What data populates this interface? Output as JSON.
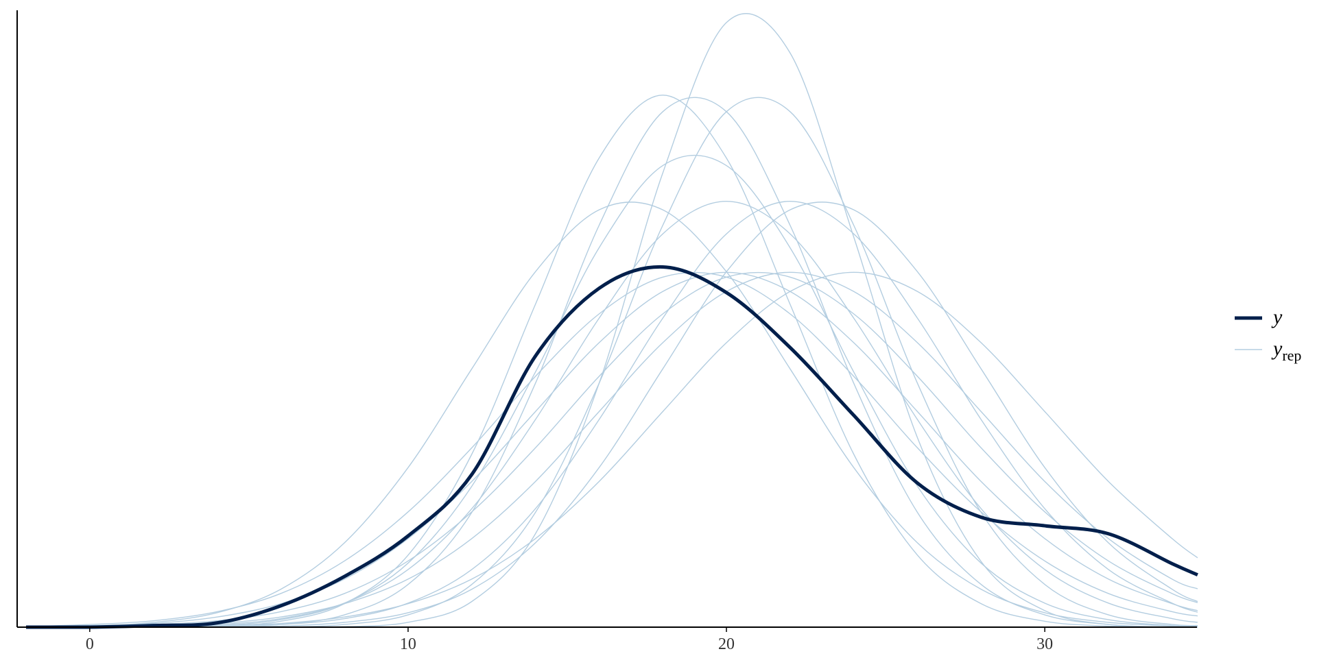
{
  "chart_data": {
    "type": "density_overlay",
    "x": [
      -2,
      0,
      2,
      4,
      6,
      8,
      10,
      12,
      14,
      16,
      18,
      20,
      22,
      24,
      26,
      28,
      30,
      32,
      34,
      34.8
    ],
    "xlim": [
      -2.28,
      34.78
    ],
    "xticks": [
      0,
      10,
      20,
      30
    ],
    "ylim": [
      0,
      0.1156
    ],
    "series": [
      {
        "color": "#b3cde0",
        "values": [
          0,
          0,
          0,
          0,
          0,
          0.0001,
          0.0009,
          0.0048,
          0.0175,
          0.0457,
          0.0851,
          0.1133,
          0.1076,
          0.0731,
          0.0355,
          0.0123,
          0.0031,
          0.0005,
          0,
          0
        ]
      },
      {
        "color": "#b3cde0",
        "values": [
          0,
          0,
          0.0001,
          0.0003,
          0.0014,
          0.0045,
          0.012,
          0.0264,
          0.0478,
          0.0711,
          0.0865,
          0.0865,
          0.0711,
          0.0478,
          0.0264,
          0.012,
          0.0045,
          0.0014,
          0.0003,
          0.0002
        ]
      },
      {
        "color": "#b3cde0",
        "values": [
          0,
          0,
          0.0002,
          0.0005,
          0.0016,
          0.0045,
          0.0108,
          0.0222,
          0.0389,
          0.0579,
          0.0737,
          0.0798,
          0.0737,
          0.0579,
          0.0389,
          0.0222,
          0.0108,
          0.0045,
          0.0016,
          0.0009
        ]
      },
      {
        "color": "#b3cde0",
        "values": [
          0,
          0.0001,
          0.0005,
          0.0012,
          0.0029,
          0.0063,
          0.0124,
          0.0216,
          0.0336,
          0.047,
          0.0587,
          0.0656,
          0.0656,
          0.0587,
          0.047,
          0.0336,
          0.0216,
          0.0124,
          0.0063,
          0.0046
        ]
      },
      {
        "color": "#b3cde0",
        "values": [
          0,
          0,
          0,
          0.0002,
          0.0011,
          0.0044,
          0.0135,
          0.0324,
          0.0605,
          0.0879,
          0.0997,
          0.0879,
          0.0605,
          0.0324,
          0.0135,
          0.0044,
          0.0011,
          0.0002,
          0,
          0
        ]
      },
      {
        "color": "#b3cde0",
        "values": [
          0,
          0,
          0,
          0.0002,
          0.0005,
          0.0016,
          0.0045,
          0.0108,
          0.0222,
          0.0389,
          0.0579,
          0.0737,
          0.0798,
          0.0737,
          0.0579,
          0.0389,
          0.0222,
          0.0108,
          0.0045,
          0.0028
        ]
      },
      {
        "color": "#b3cde0",
        "values": [
          0.0001,
          0.0005,
          0.0012,
          0.0029,
          0.0063,
          0.0124,
          0.0216,
          0.0336,
          0.047,
          0.0587,
          0.0656,
          0.0656,
          0.0587,
          0.047,
          0.0336,
          0.0216,
          0.0124,
          0.0063,
          0.0029,
          0.0021
        ]
      },
      {
        "color": "#b3cde0",
        "values": [
          0,
          0,
          0,
          0.0001,
          0.0002,
          0.0009,
          0.0027,
          0.0071,
          0.0158,
          0.0299,
          0.0484,
          0.0666,
          0.0782,
          0.0782,
          0.0666,
          0.0484,
          0.0299,
          0.0158,
          0.0071,
          0.0048
        ]
      },
      {
        "color": "#b3cde0",
        "values": [
          0,
          0,
          0,
          0,
          0,
          0.0005,
          0.0023,
          0.008,
          0.0215,
          0.0457,
          0.0753,
          0.0966,
          0.0966,
          0.0753,
          0.0457,
          0.0215,
          0.008,
          0.0023,
          0.0005,
          0.0003
        ]
      },
      {
        "color": "#b3cde0",
        "values": [
          0.0001,
          0.0003,
          0.0007,
          0.0019,
          0.0044,
          0.009,
          0.0166,
          0.0273,
          0.0404,
          0.0533,
          0.0629,
          0.0665,
          0.0629,
          0.0533,
          0.0404,
          0.0273,
          0.0166,
          0.009,
          0.0044,
          0.0031
        ]
      },
      {
        "color": "#b3cde0",
        "values": [
          0.0001,
          0.0002,
          0.0009,
          0.0027,
          0.0071,
          0.0158,
          0.0299,
          0.0484,
          0.0666,
          0.0782,
          0.0782,
          0.0666,
          0.0484,
          0.0299,
          0.0158,
          0.0071,
          0.0027,
          0.0009,
          0.0002,
          0.0001
        ]
      },
      {
        "color": "#b3cde0",
        "values": [
          0,
          0,
          0.0001,
          0.0003,
          0.0007,
          0.0019,
          0.0044,
          0.009,
          0.0166,
          0.0273,
          0.0404,
          0.0533,
          0.0629,
          0.0665,
          0.0629,
          0.0533,
          0.0404,
          0.0273,
          0.0166,
          0.013
        ]
      },
      {
        "color": "#b3cde0",
        "values": [
          0,
          0,
          0,
          0,
          0.0005,
          0.0023,
          0.008,
          0.0215,
          0.0457,
          0.0753,
          0.0966,
          0.0966,
          0.0753,
          0.0457,
          0.0215,
          0.008,
          0.0023,
          0.0005,
          0,
          0
        ]
      },
      {
        "color": "#b3cde0",
        "values": [
          0,
          0.0001,
          0.0003,
          0.0007,
          0.0019,
          0.0044,
          0.009,
          0.0166,
          0.0273,
          0.0404,
          0.0533,
          0.0629,
          0.0665,
          0.0629,
          0.0533,
          0.0404,
          0.0273,
          0.0166,
          0.009,
          0.0072
        ]
      },
      {
        "name": "y",
        "color": "#011f4b",
        "thick": true,
        "values": [
          0,
          0,
          0.0003,
          0.0008,
          0.004,
          0.0095,
          0.0171,
          0.0286,
          0.0508,
          0.0635,
          0.0675,
          0.0627,
          0.0524,
          0.0397,
          0.027,
          0.0206,
          0.019,
          0.0175,
          0.0119,
          0.0098
        ]
      }
    ],
    "legend": [
      {
        "text": "y",
        "color": "#011f4b",
        "thick": true
      },
      {
        "text": "y",
        "subscript": "rep",
        "color": "#b3cde0",
        "thick": false
      }
    ]
  }
}
